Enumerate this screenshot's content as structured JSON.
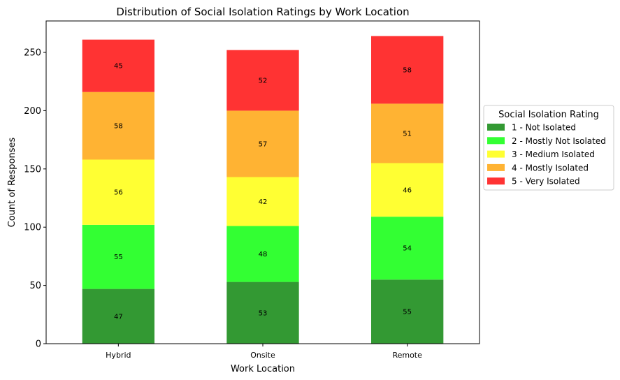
{
  "chart_data": {
    "type": "bar",
    "stacked": true,
    "title": "Distribution of Social Isolation Ratings by Work Location",
    "xlabel": "Work Location",
    "ylabel": "Count of Responses",
    "categories": [
      "Hybrid",
      "Onsite",
      "Remote"
    ],
    "ylim": [
      0,
      277
    ],
    "yticks": [
      0,
      50,
      100,
      150,
      200,
      250
    ],
    "grid": false,
    "legend": {
      "title": "Social Isolation Rating",
      "placement": "center-right-outside"
    },
    "series": [
      {
        "name": "1 - Not Isolated",
        "color": "#339933",
        "values": [
          47,
          53,
          55
        ]
      },
      {
        "name": "2 - Mostly Not Isolated",
        "color": "#33ff33",
        "values": [
          55,
          48,
          54
        ]
      },
      {
        "name": "3 - Medium Isolated",
        "color": "#ffff33",
        "values": [
          56,
          42,
          46
        ]
      },
      {
        "name": "4 - Mostly Isolated",
        "color": "#ffb333",
        "values": [
          58,
          57,
          51
        ]
      },
      {
        "name": "5 - Very Isolated",
        "color": "#ff3333",
        "values": [
          45,
          52,
          58
        ]
      }
    ]
  }
}
